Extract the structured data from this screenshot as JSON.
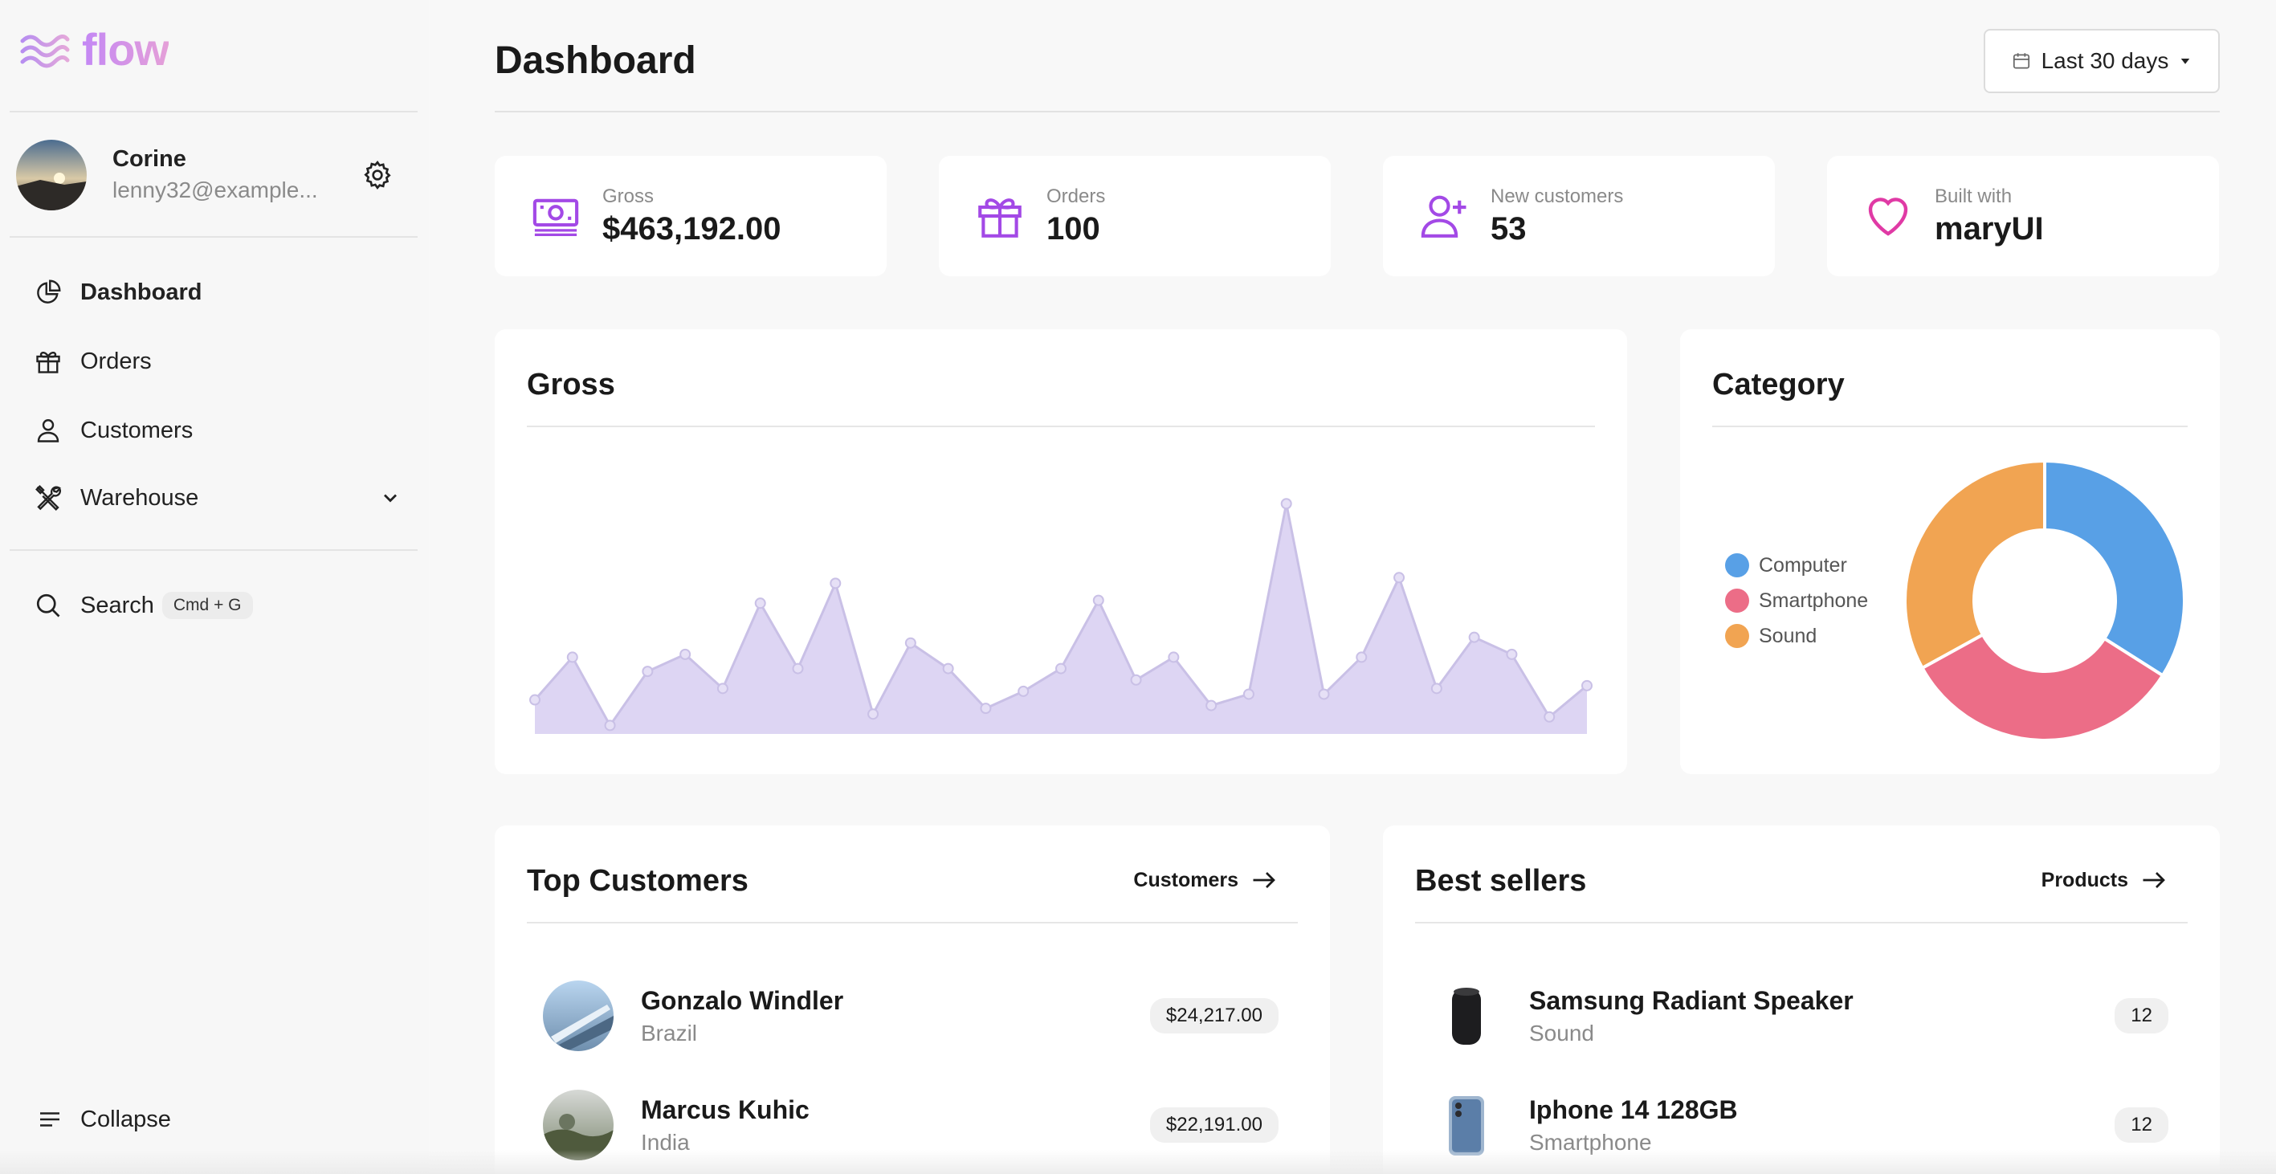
{
  "app": {
    "brand": "flow"
  },
  "user": {
    "name": "Corine",
    "email": "lenny32@example..."
  },
  "nav": [
    {
      "label": "Dashboard",
      "icon": "chart-pie-icon",
      "active": true
    },
    {
      "label": "Orders",
      "icon": "gift-icon"
    },
    {
      "label": "Customers",
      "icon": "user-icon"
    },
    {
      "label": "Warehouse",
      "icon": "wrench-screwdriver-icon"
    }
  ],
  "search": {
    "label": "Search",
    "shortcut": "Cmd + G"
  },
  "collapse_label": "Collapse",
  "header": {
    "title": "Dashboard",
    "range_label": "Last 30 days"
  },
  "stats": [
    {
      "label": "Gross",
      "value": "$463,192.00",
      "icon": "banknotes-icon"
    },
    {
      "label": "Orders",
      "value": "100",
      "icon": "gift-icon"
    },
    {
      "label": "New customers",
      "value": "53",
      "icon": "user-plus-icon"
    },
    {
      "label": "Built with",
      "value": "maryUI",
      "icon": "heart-icon"
    }
  ],
  "gross_card": {
    "title": "Gross"
  },
  "category_card": {
    "title": "Category"
  },
  "chart_data": [
    {
      "type": "area",
      "title": "Gross",
      "x": [
        1,
        2,
        3,
        4,
        5,
        6,
        7,
        8,
        9,
        10,
        11,
        12,
        13,
        14,
        15,
        16,
        17,
        18,
        19,
        20,
        21,
        22,
        23,
        24,
        25,
        26,
        27,
        28,
        29
      ],
      "values": [
        12,
        27,
        3,
        22,
        28,
        16,
        46,
        23,
        53,
        7,
        32,
        23,
        9,
        15,
        23,
        47,
        19,
        27,
        10,
        14,
        81,
        14,
        27,
        55,
        16,
        34,
        28,
        6,
        17
      ],
      "ylim": [
        0,
        100
      ],
      "grid": false,
      "legend": "none",
      "color": "#ddd5f3",
      "line_color": "#c9c0e6"
    },
    {
      "type": "pie",
      "title": "Category",
      "categories": [
        "Computer",
        "Smartphone",
        "Sound"
      ],
      "values": [
        34,
        33,
        33
      ],
      "colors": [
        "#58a0e6",
        "#ec6d87",
        "#f1a452"
      ],
      "legend": "left"
    }
  ],
  "top_customers": {
    "title": "Top Customers",
    "link_label": "Customers",
    "rows": [
      {
        "name": "Gonzalo Windler",
        "country": "Brazil",
        "amount": "$24,217.00"
      },
      {
        "name": "Marcus Kuhic",
        "country": "India",
        "amount": "$22,191.00"
      }
    ]
  },
  "best_sellers": {
    "title": "Best sellers",
    "link_label": "Products",
    "rows": [
      {
        "name": "Samsung Radiant Speaker",
        "category": "Sound",
        "count": "12"
      },
      {
        "name": "Iphone 14 128GB",
        "category": "Smartphone",
        "count": "12"
      }
    ]
  }
}
